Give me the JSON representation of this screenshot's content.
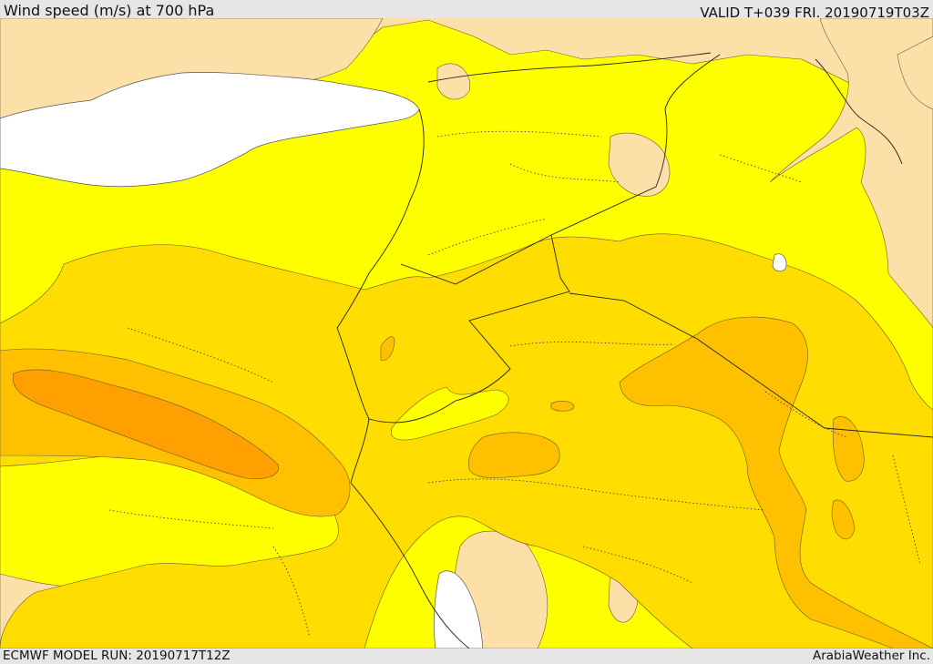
{
  "header": {
    "title": "Wind speed (m/s) at 700 hPa",
    "valid_time": "VALID T+039 FRI. 20190719T03Z"
  },
  "footer": {
    "model_run": "ECMWF MODEL RUN: 20190717T12Z",
    "credit": "ArabiaWeather Inc."
  },
  "colors": {
    "water": "#ffffff",
    "speed_lowest": "#fde0a8",
    "speed_low": "#ffff00",
    "speed_mid": "#ffdd00",
    "speed_high": "#ffc000",
    "speed_highest": "#ff9f00",
    "chrome": "#e6e6e6"
  }
}
